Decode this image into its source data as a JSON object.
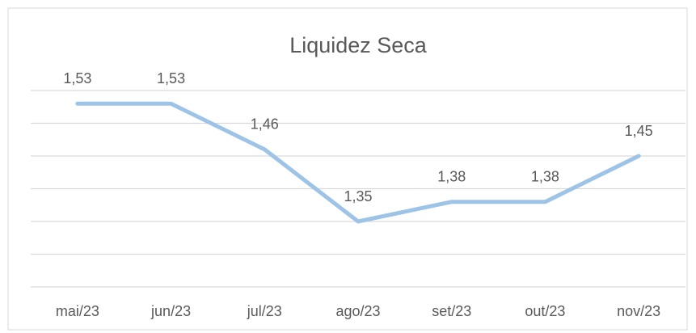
{
  "chart_data": {
    "type": "line",
    "title": "Liquidez Seca",
    "categories": [
      "mai/23",
      "jun/23",
      "jul/23",
      "ago/23",
      "set/23",
      "out/23",
      "nov/23"
    ],
    "series": [
      {
        "name": "Liquidez Seca",
        "color": "#9dc3e6",
        "values": [
          1.53,
          1.53,
          1.46,
          1.35,
          1.38,
          1.38,
          1.45
        ],
        "value_labels": [
          "1,53",
          "1,53",
          "1,46",
          "1,35",
          "1,38",
          "1,38",
          "1,45"
        ]
      }
    ],
    "ylim": [
      1.25,
      1.55
    ],
    "yticks": [
      1.25,
      1.3,
      1.35,
      1.4,
      1.45,
      1.5,
      1.55
    ],
    "grid": true
  }
}
